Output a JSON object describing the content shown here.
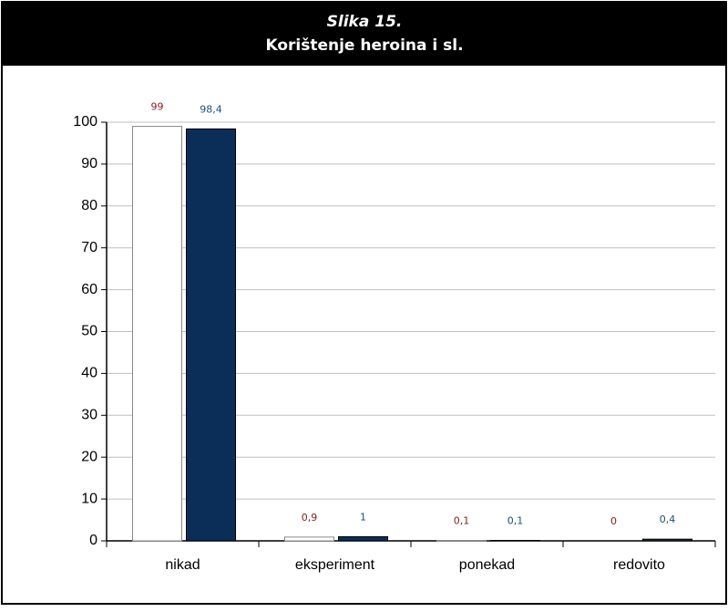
{
  "chart_data": {
    "type": "bar",
    "title": "Slika 15.",
    "subtitle": "Korištenje heroina i sl.",
    "categories": [
      "nikad",
      "eksperiment",
      "ponekad",
      "redovito"
    ],
    "series": [
      {
        "color": "#ffffff",
        "values": [
          99,
          0.9,
          0.1,
          0
        ],
        "value_labels": [
          "99",
          "0,9",
          "0,1",
          "0"
        ],
        "label_color": "#8b1a1a"
      },
      {
        "color": "#0b2e59",
        "values": [
          98.4,
          1,
          0.1,
          0.4
        ],
        "value_labels": [
          "98,4",
          "1",
          "0,1",
          "0,4"
        ],
        "label_color": "#1f4e79"
      }
    ],
    "ylim": [
      0,
      100
    ],
    "yticks": [
      0,
      10,
      20,
      30,
      40,
      50,
      60,
      70,
      80,
      90,
      100
    ],
    "grid": true
  }
}
